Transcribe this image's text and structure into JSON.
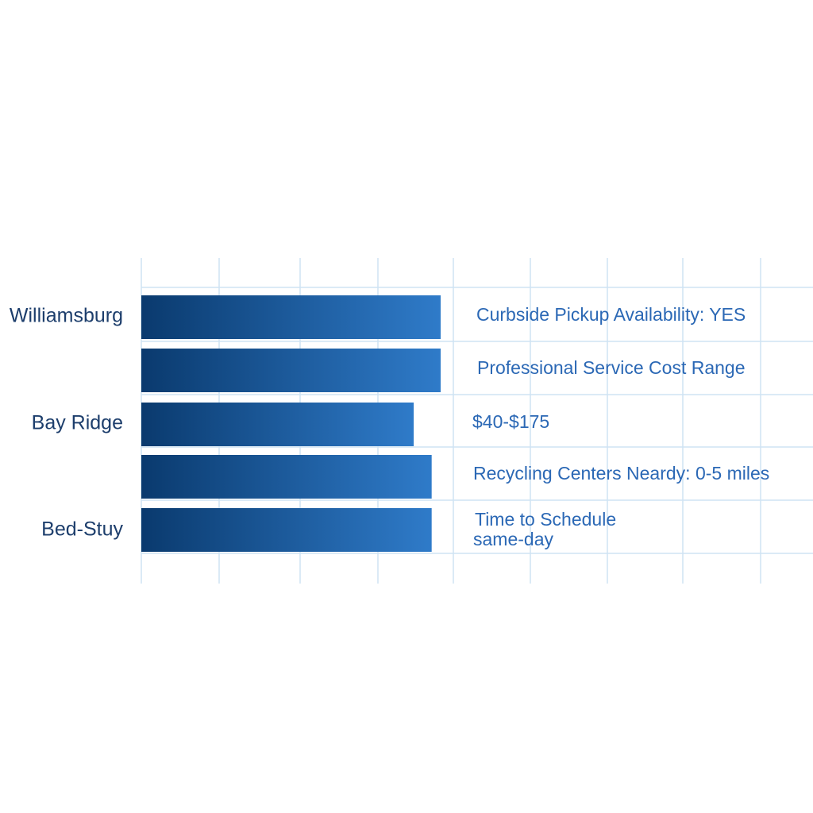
{
  "chart_data": {
    "type": "bar",
    "orientation": "horizontal",
    "title": "",
    "xlabel": "",
    "ylabel": "",
    "grid": true,
    "category_labels": [
      {
        "label": "Williamsburg",
        "row": 0
      },
      {
        "label": "Bay Ridge",
        "row": 2
      },
      {
        "label": "Bed-Stuy",
        "row": 4
      }
    ],
    "relative_values": [
      1.0,
      1.0,
      0.91,
      0.97,
      0.97
    ],
    "annotations": [
      "Curbside Pickup Availability: YES",
      "Professional Service Cost Range",
      "$40-$175",
      "Recycling Centers Neardy: 0-5 miles",
      "Time to Schedule",
      "same-day"
    ],
    "colors": {
      "bar_start": "#0a3a6e",
      "bar_end": "#2f7bc9",
      "grid": "#cfe3f3",
      "label": "#1d3e6c",
      "annotation": "#2b68b5"
    }
  }
}
